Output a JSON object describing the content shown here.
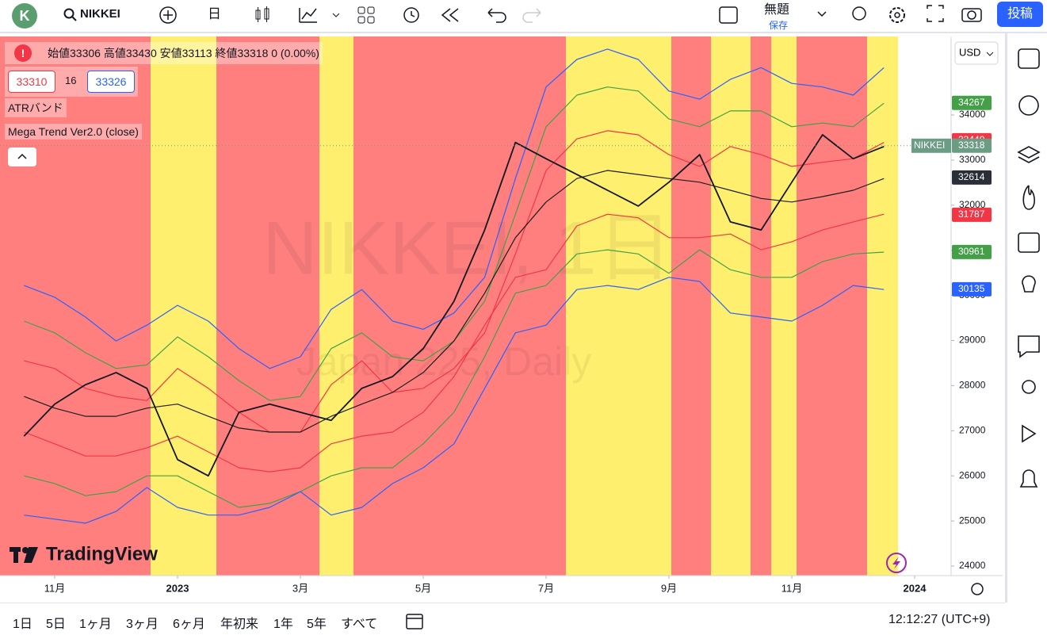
{
  "toolbar": {
    "avatar": "K",
    "symbol": "NIKKEI",
    "interval": "日",
    "layout_name": "無題",
    "save": "保存",
    "publish": "投稿"
  },
  "legend": {
    "ohlc": "始値33306 高値33430 安値33113 終値33318 0 (0.00%)",
    "bid": "33310",
    "spread": "16",
    "ask": "33326",
    "indicators": [
      "ATRバンド",
      "Mega Trend Ver2.0 (close)"
    ]
  },
  "watermark": {
    "title": "NIKKEI, 1日",
    "subtitle": "Japan 225, Daily"
  },
  "logo": "TradingView",
  "chart_data": {
    "type": "line",
    "currency": "USD",
    "categories": [
      null,
      "11月",
      null,
      null,
      null,
      "2023",
      null,
      null,
      null,
      "3月",
      null,
      null,
      null,
      "5月",
      null,
      null,
      null,
      "7月",
      null,
      null,
      null,
      "9月",
      null,
      null,
      null,
      "11月",
      null,
      null,
      null,
      "2024"
    ],
    "ylim": [
      23789,
      35740
    ],
    "yticks": [
      24000,
      25000,
      26000,
      27000,
      28000,
      29000,
      30000,
      31000,
      32000,
      33000,
      34000
    ],
    "series": [
      {
        "color": "#2962ff",
        "values": [
          30220,
          29960,
          29520,
          28990,
          29340,
          29780,
          29430,
          28820,
          28380,
          28640,
          29690,
          30130,
          29430,
          29250,
          29610,
          30400,
          32590,
          34620,
          35230,
          35460,
          35230,
          34530,
          34350,
          34790,
          35050,
          34700,
          34620,
          34440,
          35050,
          null
        ]
      },
      {
        "color": "#43a047",
        "values": [
          29430,
          29170,
          28730,
          28380,
          28460,
          29080,
          28640,
          28110,
          27670,
          27760,
          28820,
          29170,
          28640,
          28550,
          28990,
          29870,
          31800,
          33740,
          34440,
          34620,
          34530,
          33910,
          33740,
          34090,
          34090,
          33740,
          33820,
          33740,
          34260,
          null
        ]
      },
      {
        "color": "#f23645",
        "values": [
          28550,
          28380,
          27940,
          27760,
          27670,
          28380,
          27940,
          27410,
          26970,
          26970,
          28020,
          28550,
          27850,
          27940,
          28380,
          29170,
          30920,
          32770,
          33470,
          33650,
          33560,
          33120,
          32860,
          33300,
          33120,
          32860,
          32950,
          33030,
          33390,
          null
        ]
      },
      {
        "color": "#1e1e1e",
        "values": [
          27760,
          27500,
          27320,
          27320,
          27500,
          27590,
          27320,
          27060,
          26970,
          26970,
          27320,
          27590,
          27850,
          28290,
          28990,
          30050,
          31280,
          32070,
          32590,
          32770,
          32680,
          32590,
          32510,
          32330,
          32150,
          32070,
          32190,
          32330,
          32590,
          null
        ]
      },
      {
        "color": "#f23645",
        "values": [
          26970,
          26710,
          26440,
          26440,
          26620,
          26880,
          26530,
          26180,
          26090,
          26180,
          26710,
          26880,
          26970,
          27410,
          28200,
          29340,
          30400,
          30570,
          31540,
          31800,
          31720,
          31280,
          31280,
          31360,
          31010,
          31190,
          31450,
          31630,
          31800,
          null
        ]
      },
      {
        "color": "#43a047",
        "values": [
          26000,
          25830,
          25560,
          25650,
          26000,
          26000,
          25650,
          25300,
          25390,
          25650,
          26000,
          26180,
          26180,
          26710,
          27410,
          28640,
          30050,
          30220,
          30920,
          31010,
          30920,
          30490,
          31010,
          30570,
          30400,
          30400,
          30750,
          30920,
          30960,
          null
        ]
      },
      {
        "color": "#2962ff",
        "values": [
          25130,
          25040,
          24950,
          25210,
          25740,
          25300,
          25130,
          25130,
          25300,
          25650,
          25130,
          25300,
          25830,
          26180,
          26710,
          27940,
          29170,
          29340,
          30130,
          30220,
          30130,
          30400,
          30310,
          29610,
          29520,
          29430,
          29780,
          30220,
          30130,
          null
        ]
      },
      {
        "color": "#131722",
        "values": [
          26880,
          27590,
          28020,
          28290,
          27940,
          26360,
          26000,
          27410,
          27590,
          27410,
          27230,
          27940,
          28200,
          28820,
          29870,
          31450,
          33390,
          33030,
          32680,
          32330,
          31980,
          32510,
          33120,
          31630,
          31450,
          32510,
          33560,
          33030,
          33300,
          null
        ]
      }
    ],
    "last_labels": [
      {
        "value": 34267,
        "color": "#43a047"
      },
      {
        "value": 33440,
        "color": "#f23645"
      },
      {
        "label": "NIKKEI",
        "value": 33318,
        "color": "#6b9c84"
      },
      {
        "value": 32614,
        "color": "#2a2e39"
      },
      {
        "value": 31787,
        "color": "#f23645"
      },
      {
        "value": 30961,
        "color": "#43a047"
      },
      {
        "value": 30135,
        "color": "#2962ff"
      }
    ]
  },
  "bottom_bar": {
    "ranges": [
      "1日",
      "5日",
      "1ヶ月",
      "3ヶ月",
      "6ヶ月",
      "年初来",
      "1年",
      "5年",
      "すべて"
    ],
    "clock": "12:12:27 (UTC+9)"
  }
}
